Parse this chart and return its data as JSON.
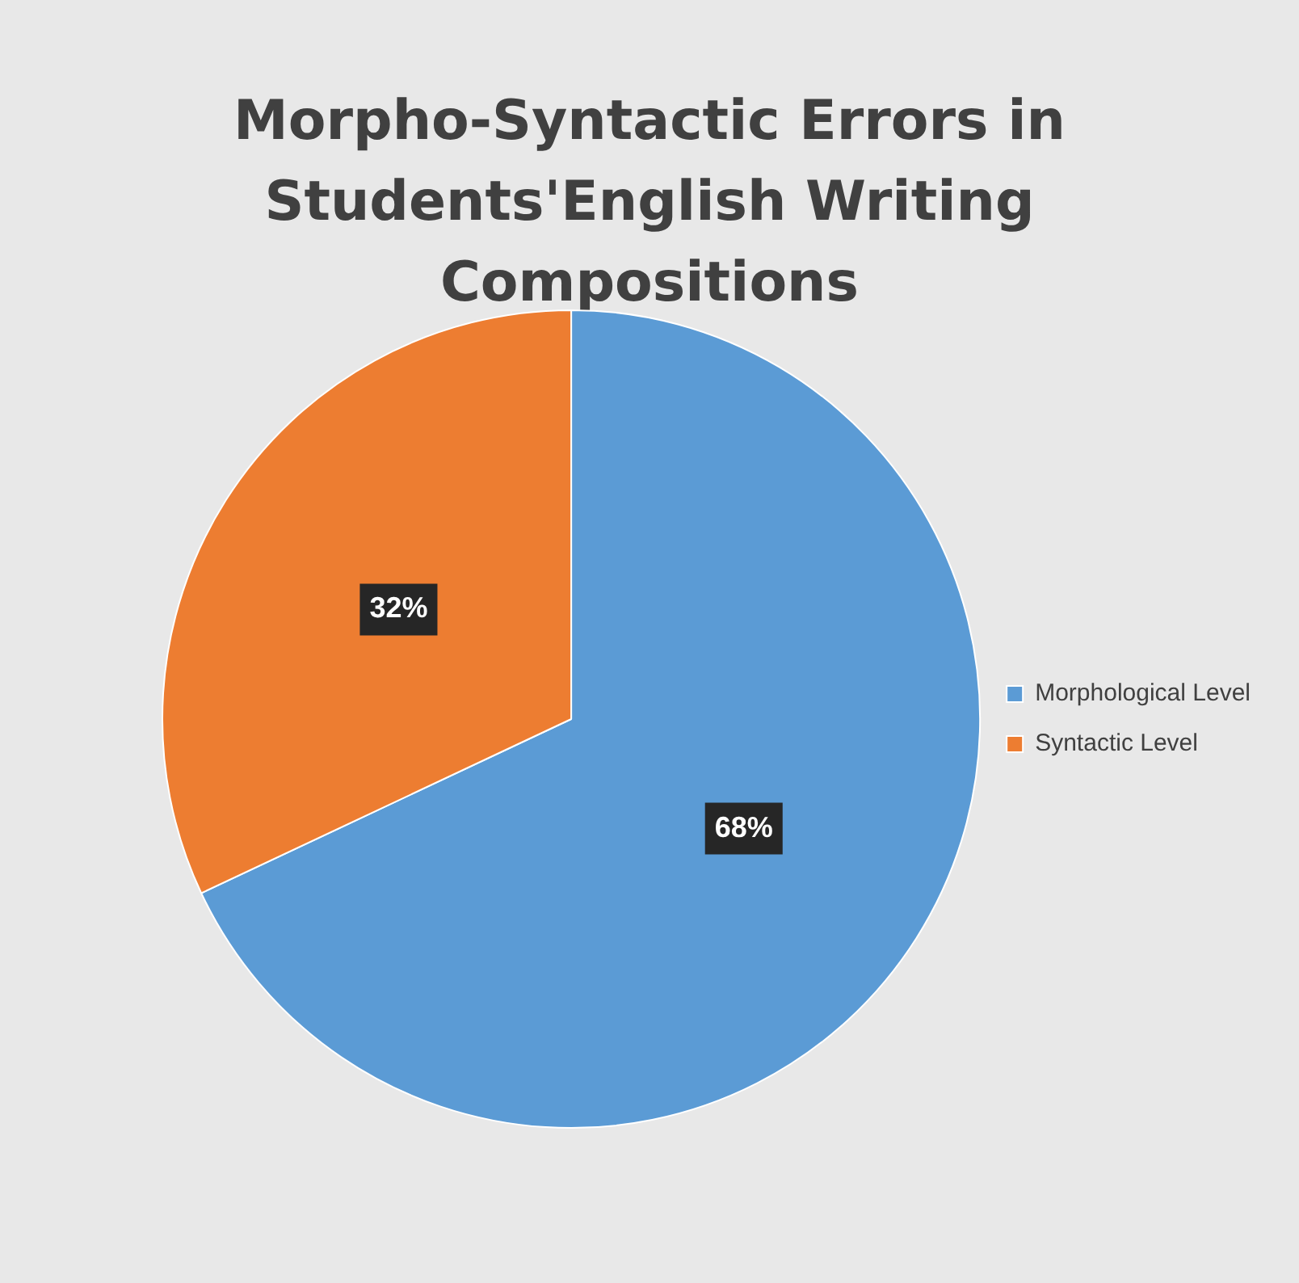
{
  "chart_data": {
    "type": "pie",
    "title": "Morpho-Syntactic  Errors in Students'English Writing Compositions",
    "categories": [
      "Morphological Level",
      "Syntactic Level"
    ],
    "values": [
      68,
      32
    ],
    "colors": [
      "#5b9bd5",
      "#ed7d31"
    ],
    "value_labels": [
      "68%",
      "32%"
    ],
    "legend": "right"
  }
}
